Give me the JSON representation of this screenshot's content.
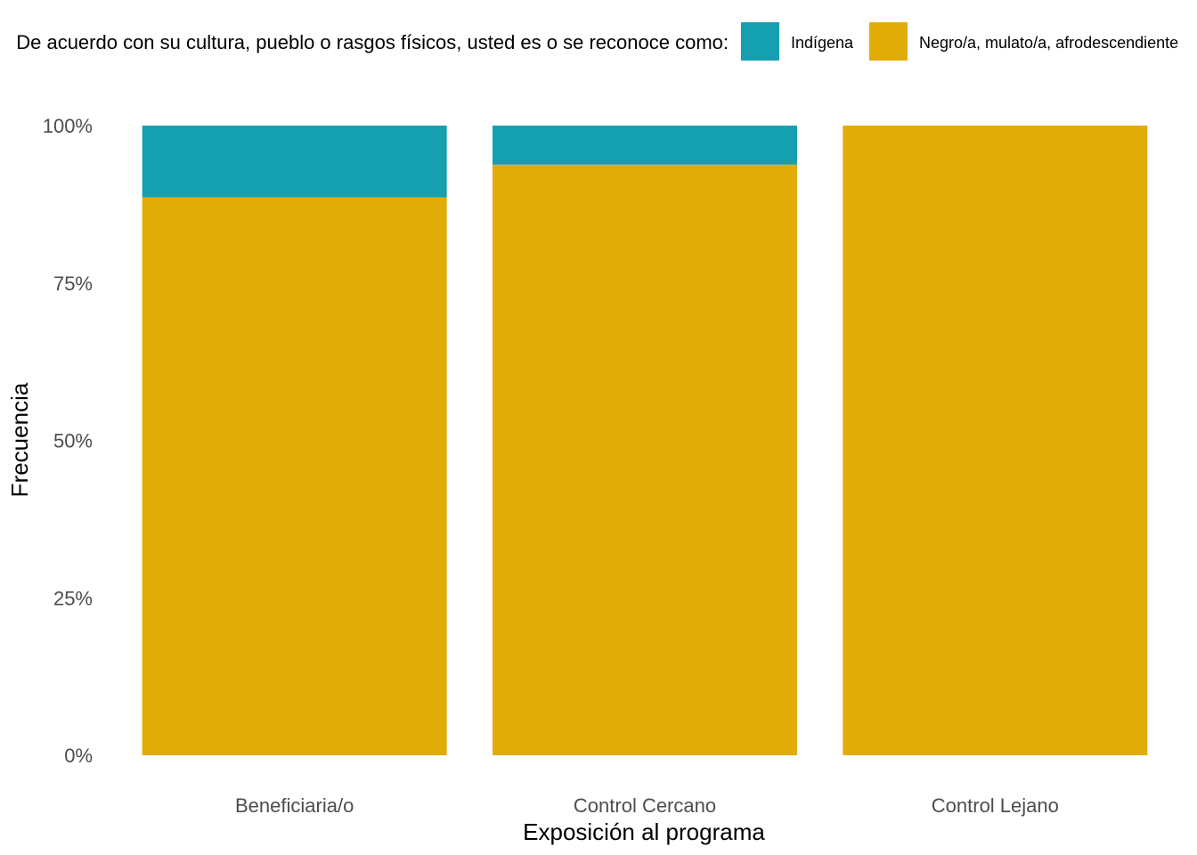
{
  "chart_data": {
    "type": "bar",
    "stacked": true,
    "categories": [
      "Beneficiaria/o",
      "Control Cercano",
      "Control Lejano"
    ],
    "series": [
      {
        "name": "Negro/a, mulato/a, afrodescendiente",
        "color": "#E1AC07",
        "values": [
          88.6,
          93.8,
          100
        ]
      },
      {
        "name": "Indígena",
        "color": "#15A0B0",
        "values": [
          11.4,
          6.2,
          0
        ]
      }
    ],
    "xlabel": "Exposición al programa",
    "ylabel": "Frecuencia",
    "ylim": [
      0,
      100
    ],
    "yticks": [
      0,
      25,
      50,
      75,
      100
    ],
    "ytick_labels": [
      "0%",
      "25%",
      "50%",
      "75%",
      "100%"
    ],
    "grid": false,
    "legend": {
      "position": "top",
      "title": "De acuerdo con su cultura, pueblo o rasgos físicos, usted es o se reconoce como:",
      "order": [
        "Indígena",
        "Negro/a, mulato/a, afrodescendiente"
      ]
    }
  }
}
